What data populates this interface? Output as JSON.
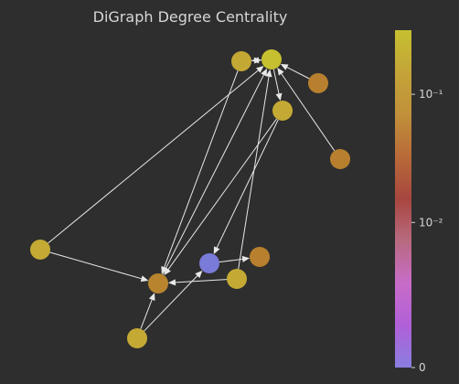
{
  "title": "DiGraph Degree Centrality",
  "colorbar": {
    "ticks": [
      {
        "label": "10⁻¹",
        "fraction": 0.81
      },
      {
        "label": "10⁻²",
        "fraction": 0.43
      },
      {
        "label": "0",
        "fraction": 0.0
      }
    ],
    "colors": [
      "#8a7ee0",
      "#b060d8",
      "#c86cc8",
      "#b86a80",
      "#a84640",
      "#b86a38",
      "#c0903a",
      "#c4a438",
      "#c6c030"
    ]
  },
  "nodes": [
    {
      "id": "n1",
      "color": "#c4a834"
    },
    {
      "id": "n2",
      "color": "#c6c030"
    },
    {
      "id": "n3",
      "color": "#b8802e"
    },
    {
      "id": "n4",
      "color": "#c4aa34"
    },
    {
      "id": "n5",
      "color": "#b8802e"
    },
    {
      "id": "n6",
      "color": "#c4aa34"
    },
    {
      "id": "n7",
      "color": "#7a7ad8"
    },
    {
      "id": "n8",
      "color": "#b8802e"
    },
    {
      "id": "n9",
      "color": "#b8842e"
    },
    {
      "id": "n10",
      "color": "#c4aa34"
    },
    {
      "id": "n11",
      "color": "#c4aa34"
    }
  ],
  "edges": [
    [
      "n1",
      "n2"
    ],
    [
      "n2",
      "n1"
    ],
    [
      "n3",
      "n2"
    ],
    [
      "n2",
      "n4"
    ],
    [
      "n5",
      "n2"
    ],
    [
      "n1",
      "n9"
    ],
    [
      "n6",
      "n2"
    ],
    [
      "n6",
      "n9"
    ],
    [
      "n4",
      "n9"
    ],
    [
      "n4",
      "n7"
    ],
    [
      "n9",
      "n2"
    ],
    [
      "n10",
      "n2"
    ],
    [
      "n10",
      "n9"
    ],
    [
      "n7",
      "n8"
    ],
    [
      "n11",
      "n7"
    ],
    [
      "n11",
      "n9"
    ]
  ]
}
